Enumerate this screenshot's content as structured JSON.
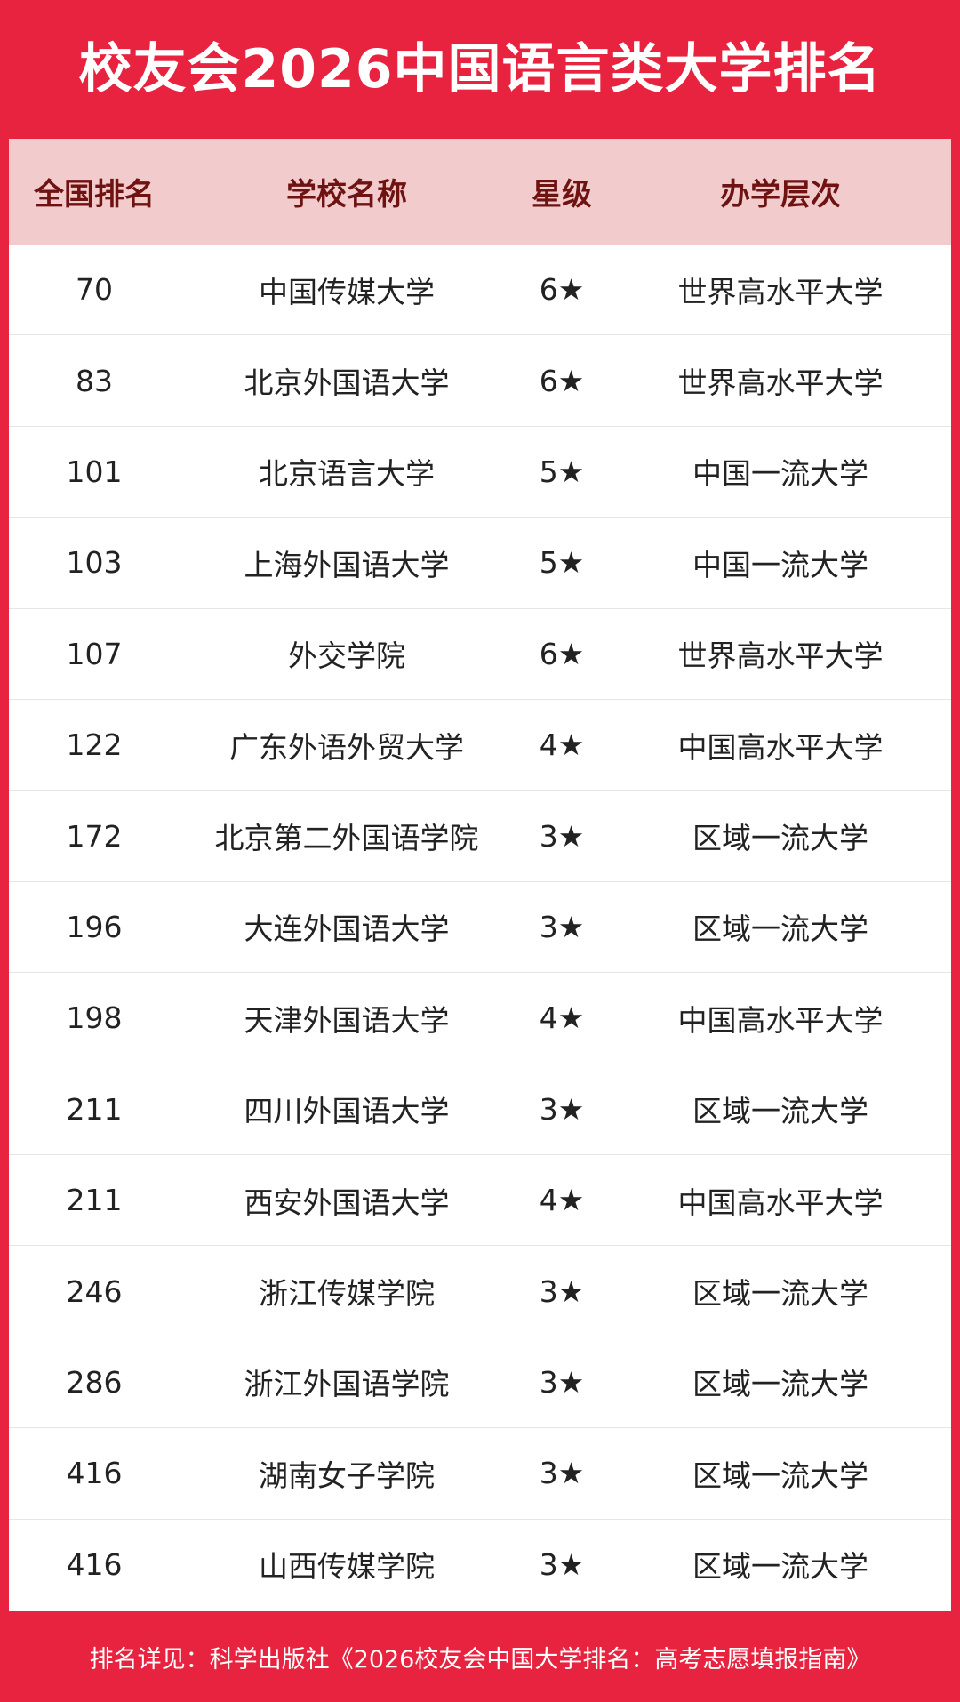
{
  "title": "校友会2026中国语言类大学排名",
  "table": {
    "header": [
      "全国排名",
      "学校名称",
      "星级",
      "办学层次"
    ],
    "rows": [
      [
        70,
        "中国传媒大学",
        "6★",
        "世界高水平大学"
      ],
      [
        83,
        "北京外国语大学",
        "6★",
        "世界高水平大学"
      ],
      [
        101,
        "北京语言大学",
        "5★",
        "中国一流大学"
      ],
      [
        103,
        "上海外国语大学",
        "5★",
        "中国一流大学"
      ],
      [
        107,
        "外交学院",
        "6★",
        "世界高水平大学"
      ],
      [
        122,
        "广东外语外贸大学",
        "4★",
        "中国高水平大学"
      ],
      [
        172,
        "北京第二外国语学院",
        "3★",
        "区域一流大学"
      ],
      [
        196,
        "大连外国语大学",
        "3★",
        "区域一流大学"
      ],
      [
        198,
        "天津外国语大学",
        "4★",
        "中国高水平大学"
      ],
      [
        211,
        "四川外国语大学",
        "3★",
        "区域一流大学"
      ],
      [
        211,
        "西安外国语大学",
        "4★",
        "中国高水平大学"
      ],
      [
        246,
        "浙江传媒学院",
        "3★",
        "区域一流大学"
      ],
      [
        286,
        "浙江外国语学院",
        "3★",
        "区域一流大学"
      ],
      [
        416,
        "湖南女子学院",
        "3★",
        "区域一流大学"
      ],
      [
        416,
        "山西传媒学院",
        "3★",
        "区域一流大学"
      ]
    ]
  },
  "footer": "排名详见：科学出版社《2026校友会中国大学排名：高考志愿填报指南》"
}
